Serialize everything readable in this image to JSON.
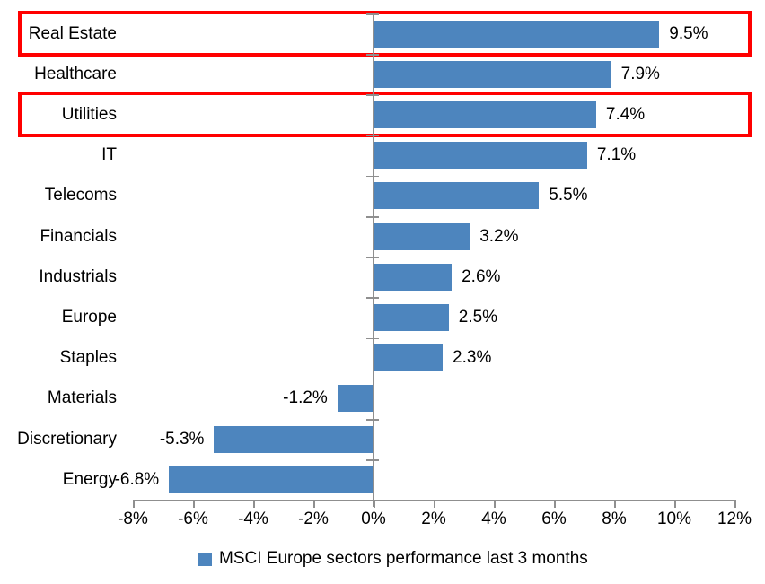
{
  "chart_data": {
    "type": "bar",
    "orientation": "horizontal",
    "categories": [
      "Real Estate",
      "Healthcare",
      "Utilities",
      "IT",
      "Telecoms",
      "Financials",
      "Industrials",
      "Europe",
      "Staples",
      "Materials",
      "Discretionary",
      "Energy"
    ],
    "values": [
      9.5,
      7.9,
      7.4,
      7.1,
      5.5,
      3.2,
      2.6,
      2.5,
      2.3,
      -1.2,
      -5.3,
      -6.8
    ],
    "value_labels": [
      "9.5%",
      "7.9%",
      "7.4%",
      "7.1%",
      "5.5%",
      "3.2%",
      "2.6%",
      "2.5%",
      "2.3%",
      "-1.2%",
      "-5.3%",
      "-6.8%"
    ],
    "highlighted_categories": [
      "Real Estate",
      "Utilities"
    ],
    "xlim": [
      -8,
      12
    ],
    "x_ticks": [
      -8,
      -6,
      -4,
      -2,
      0,
      2,
      4,
      6,
      8,
      10,
      12
    ],
    "x_tick_labels": [
      "-8%",
      "-6%",
      "-4%",
      "-2%",
      "0%",
      "2%",
      "4%",
      "6%",
      "8%",
      "10%",
      "12%"
    ],
    "xlabel": "",
    "ylabel": "",
    "title": "",
    "grid": false,
    "legend": "MSCI Europe sectors performance last 3 months",
    "legend_position": "bottom",
    "bar_color": "#4d85be",
    "axis_color": "#8f8f8f",
    "highlight_color": "#ff0000",
    "text_color": "#000000"
  }
}
